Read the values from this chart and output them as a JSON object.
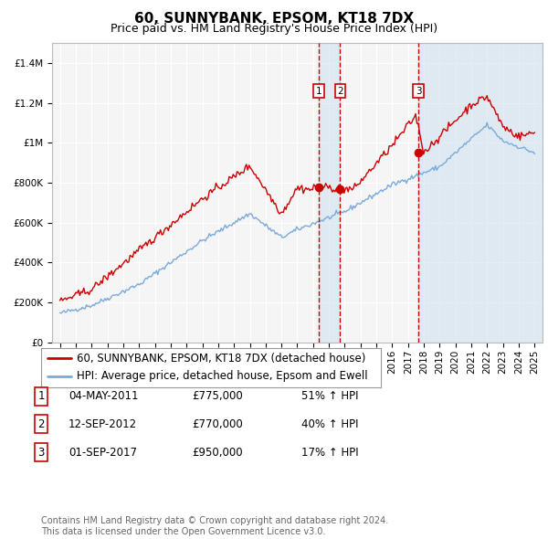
{
  "title": "60, SUNNYBANK, EPSOM, KT18 7DX",
  "subtitle": "Price paid vs. HM Land Registry's House Price Index (HPI)",
  "background_color": "#ffffff",
  "plot_bg_color": "#f5f5f5",
  "grid_color": "#ffffff",
  "ylim": [
    0,
    1500000
  ],
  "yticks": [
    0,
    200000,
    400000,
    600000,
    800000,
    1000000,
    1200000,
    1400000
  ],
  "ytick_labels": [
    "£0",
    "£200K",
    "£400K",
    "£600K",
    "£800K",
    "£1M",
    "£1.2M",
    "£1.4M"
  ],
  "sale_dates": [
    2011.34,
    2012.71,
    2017.67
  ],
  "sale_prices": [
    775000,
    770000,
    950000
  ],
  "sale_labels": [
    "1",
    "2",
    "3"
  ],
  "vline_color": "#cc0000",
  "vline_shade_color": "#c8dff0",
  "prop_color": "#cc0000",
  "hpi_color": "#7aaadd",
  "legend_entries": [
    "60, SUNNYBANK, EPSOM, KT18 7DX (detached house)",
    "HPI: Average price, detached house, Epsom and Ewell"
  ],
  "table_data": [
    [
      "1",
      "04-MAY-2011",
      "£775,000",
      "51% ↑ HPI"
    ],
    [
      "2",
      "12-SEP-2012",
      "£770,000",
      "40% ↑ HPI"
    ],
    [
      "3",
      "01-SEP-2017",
      "£950,000",
      "17% ↑ HPI"
    ]
  ],
  "footer": "Contains HM Land Registry data © Crown copyright and database right 2024.\nThis data is licensed under the Open Government Licence v3.0.",
  "title_fontsize": 11,
  "subtitle_fontsize": 9,
  "tick_fontsize": 7.5,
  "legend_fontsize": 8.5,
  "table_fontsize": 8.5,
  "footer_fontsize": 7
}
